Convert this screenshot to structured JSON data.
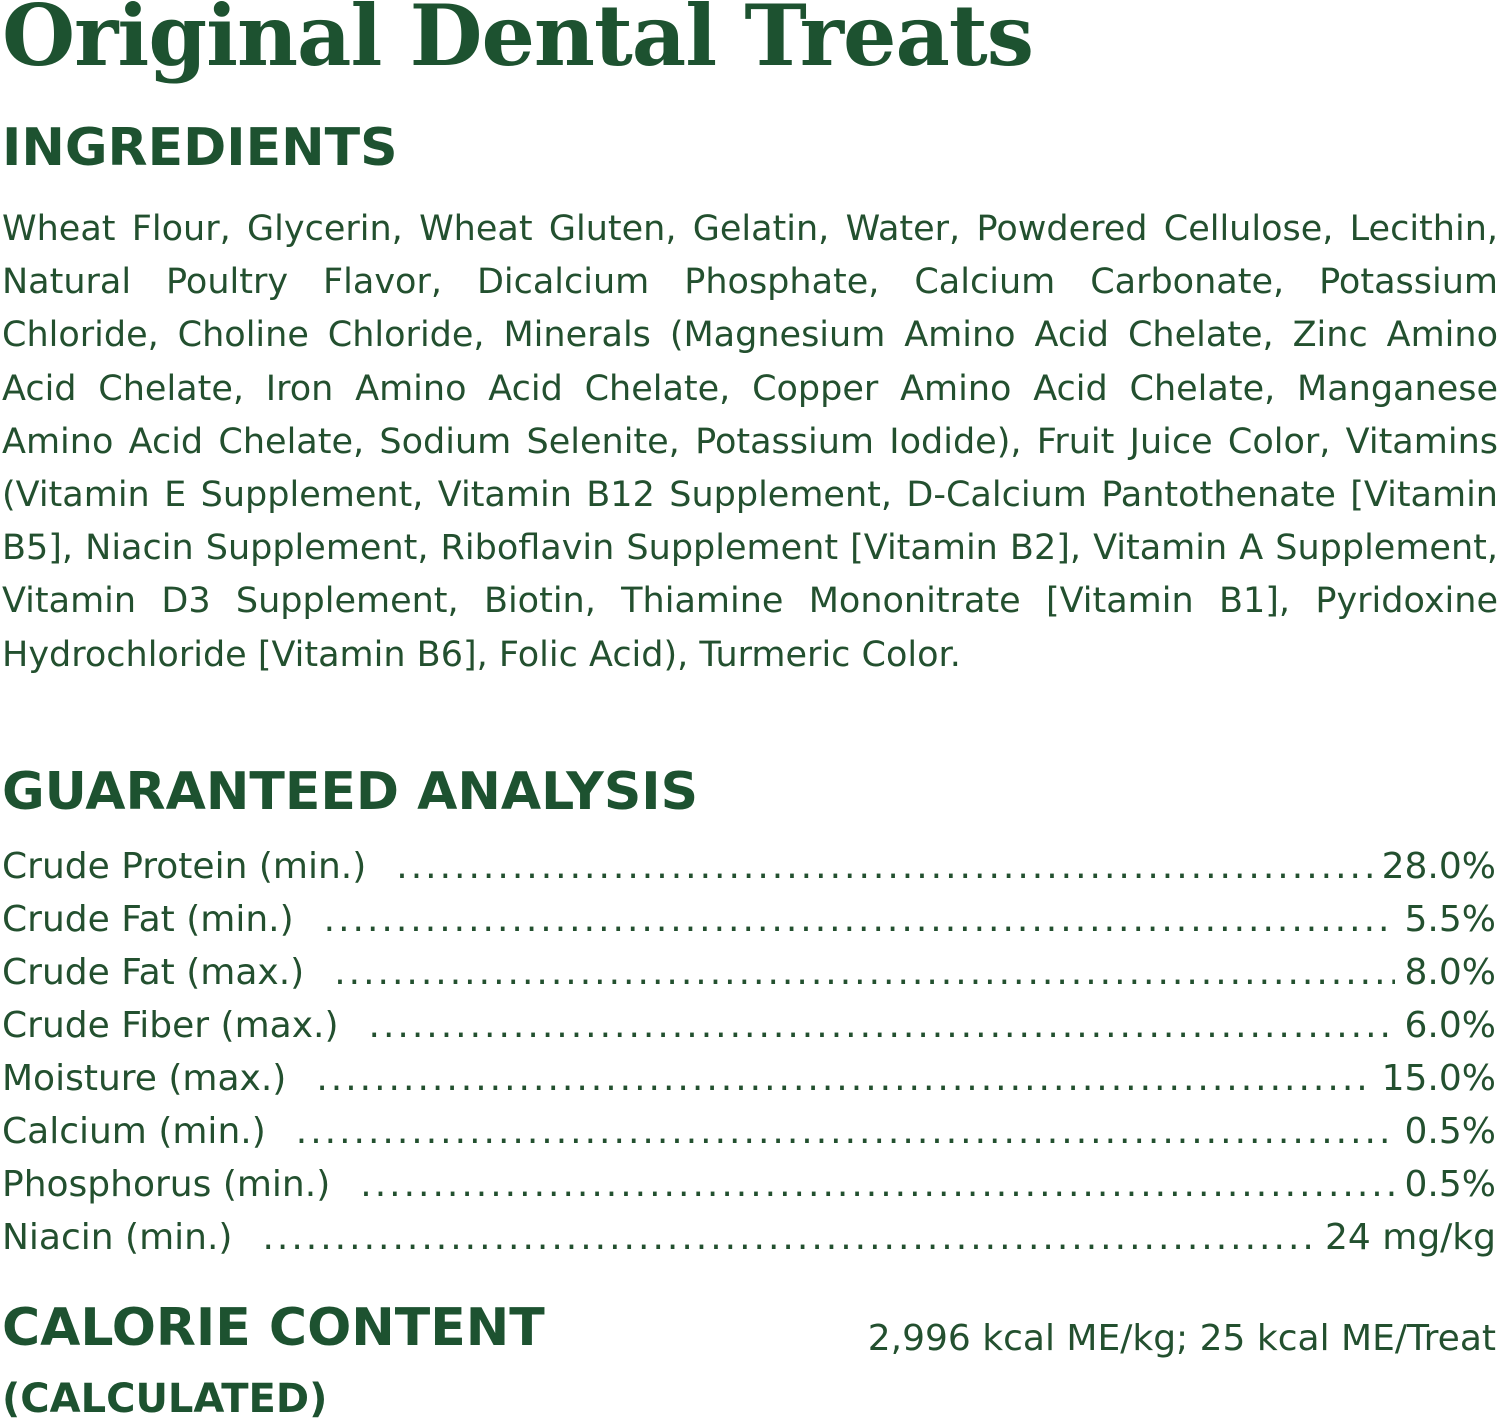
{
  "title": "Original Dental Treats",
  "colors": {
    "heading": "#1d5230",
    "text": "#23502f",
    "background": "#ffffff"
  },
  "ingredients": {
    "heading": "INGREDIENTS",
    "text": "Wheat Flour, Glycerin, Wheat Gluten, Gelatin, Water, Powdered Cellulose, Lecithin, Natural Poultry Flavor, Dicalcium Phosphate, Calcium Carbonate, Potassium Chloride, Choline Chloride, Minerals (Magnesium Amino Acid Chelate, Zinc Amino Acid Chelate, Iron Amino Acid Chelate, Copper Amino Acid Chelate, Manganese Amino Acid Chelate, Sodium Selenite, Potassium Iodide), Fruit Juice Color, Vitamins (Vitamin E Supplement, Vitamin B12 Supplement, D-Calcium Pantothenate [Vitamin B5], Niacin Supplement, Riboflavin Supplement [Vitamin B2], Vitamin A Supplement, Vitamin D3 Supplement, Biotin, Thiamine Mononitrate [Vitamin B1], Pyridoxine Hydrochloride [Vitamin B6], Folic Acid), Turmeric Color."
  },
  "analysis": {
    "heading": "GUARANTEED ANALYSIS",
    "rows": [
      {
        "label": "Crude Protein (min.)",
        "value": "28.0%"
      },
      {
        "label": "Crude Fat (min.)",
        "value": "5.5%"
      },
      {
        "label": "Crude Fat (max.)",
        "value": "8.0%"
      },
      {
        "label": "Crude Fiber (max.)",
        "value": "6.0%"
      },
      {
        "label": "Moisture (max.)",
        "value": "15.0%"
      },
      {
        "label": "Calcium (min.)",
        "value": "0.5%"
      },
      {
        "label": "Phosphorus (min.)",
        "value": "0.5%"
      },
      {
        "label": "Niacin (min.)",
        "value": "24 mg/kg"
      }
    ]
  },
  "calorie": {
    "heading": "CALORIE CONTENT",
    "subheading": "(CALCULATED)",
    "value": "2,996 kcal ME/kg; 25 kcal ME/Treat"
  }
}
